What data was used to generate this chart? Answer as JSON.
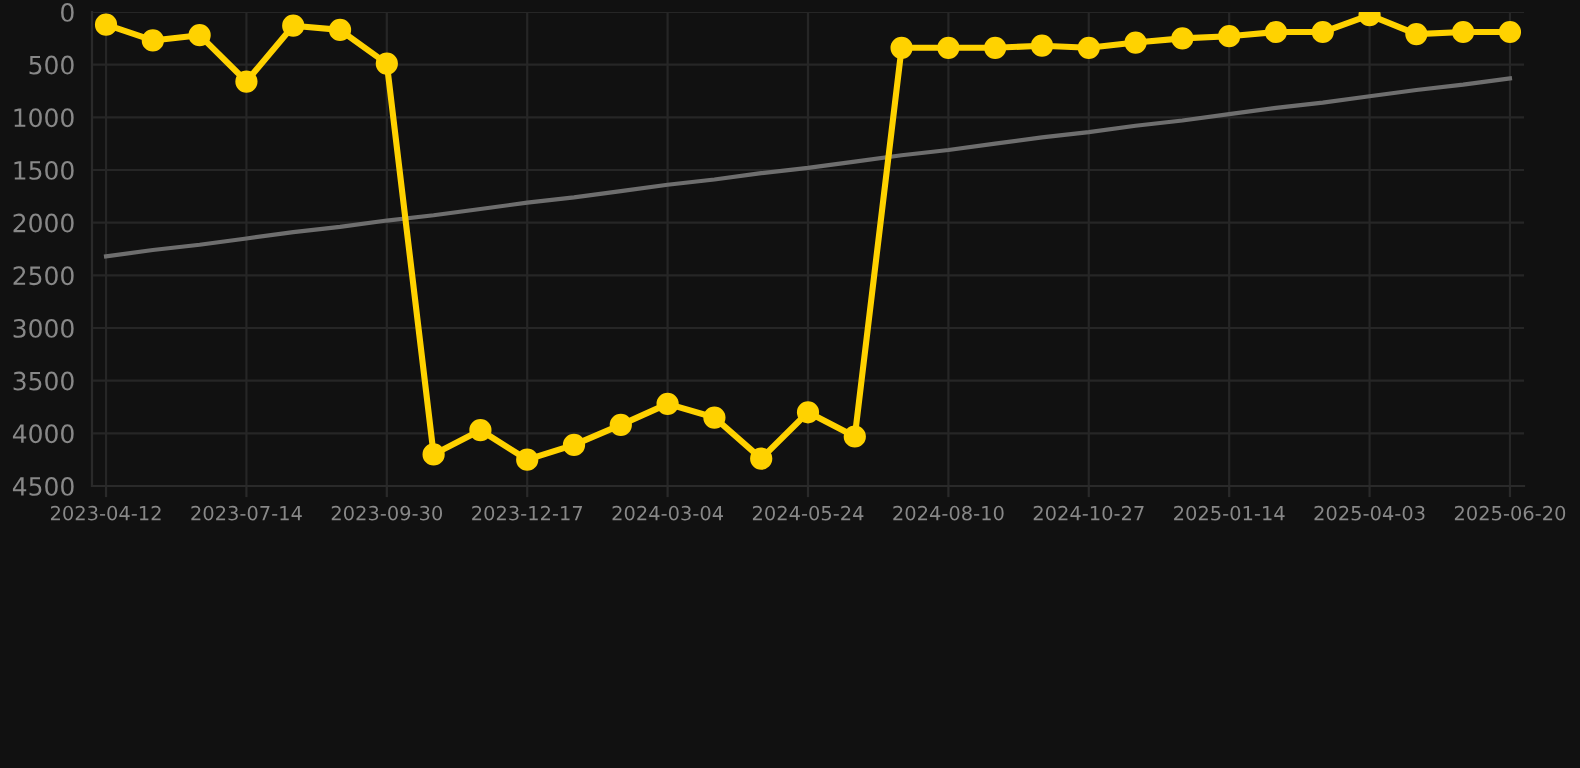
{
  "chart_data": {
    "type": "line",
    "categories": [
      "2023-04-12",
      null,
      null,
      "2023-07-14",
      null,
      null,
      "2023-09-30",
      null,
      null,
      "2023-12-17",
      null,
      null,
      "2024-03-04",
      null,
      null,
      "2024-05-24",
      null,
      null,
      "2024-08-10",
      null,
      null,
      "2024-10-27",
      null,
      null,
      "2025-01-14",
      null,
      null,
      "2025-04-03",
      null,
      null,
      "2025-06-20"
    ],
    "series": [
      {
        "color": "#ffd200",
        "marker": "circle",
        "values": [
          120,
          270,
          220,
          660,
          130,
          170,
          490,
          4200,
          3970,
          4250,
          4110,
          3920,
          3720,
          3850,
          4240,
          3800,
          4030,
          340,
          340,
          340,
          320,
          340,
          290,
          250,
          230,
          190,
          190,
          30,
          210,
          190,
          190
        ]
      },
      {
        "color": "#6e6e6e",
        "marker": "none",
        "values": [
          2320,
          2260,
          2210,
          2150,
          2090,
          2040,
          1980,
          1930,
          1870,
          1810,
          1760,
          1700,
          1640,
          1590,
          1530,
          1480,
          1420,
          1360,
          1310,
          1250,
          1190,
          1140,
          1080,
          1030,
          970,
          910,
          860,
          800,
          740,
          690,
          630
        ]
      }
    ],
    "ylim": [
      4500,
      0
    ],
    "yticks": [
      0,
      500,
      1000,
      1500,
      2000,
      2500,
      3000,
      3500,
      4000,
      4500
    ],
    "grid": true,
    "line_style": "solid"
  }
}
